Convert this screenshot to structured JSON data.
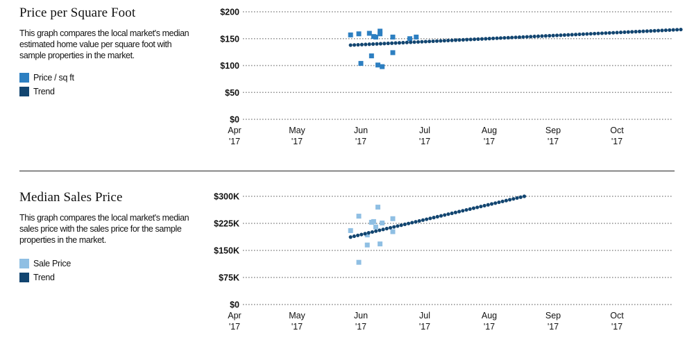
{
  "colors": {
    "price_sqft": "#2d7fc1",
    "sale_price": "#8fbfe3",
    "trend": "#124570",
    "grid": "#888888"
  },
  "panels": [
    {
      "title": "Price per Square Foot",
      "description": "This graph compares the local market's median estimated home value per square foot with sample properties in the market.",
      "legend": [
        {
          "label": "Price / sq ft",
          "color": "#2d7fc1"
        },
        {
          "label": "Trend",
          "color": "#124570"
        }
      ]
    },
    {
      "title": "Median Sales Price",
      "description": "This graph compares the local market's median sales price with the sales price for the sample properties in the market.",
      "legend": [
        {
          "label": "Sale Price",
          "color": "#8fbfe3"
        },
        {
          "label": "Trend",
          "color": "#124570"
        }
      ]
    }
  ],
  "chart_data": [
    {
      "type": "scatter",
      "title": "Price per Square Foot",
      "x_axis": {
        "type": "date",
        "range": [
          "2017-04-01",
          "2017-10-31"
        ],
        "ticks": [
          [
            "Apr",
            "'17"
          ],
          [
            "May",
            "'17"
          ],
          [
            "Jun",
            "'17"
          ],
          [
            "Jul",
            "'17"
          ],
          [
            "Aug",
            "'17"
          ],
          [
            "Sep",
            "'17"
          ],
          [
            "Oct",
            "'17"
          ]
        ]
      },
      "y_axis": {
        "range": [
          0,
          200
        ],
        "ticks": [
          "$0",
          "$50",
          "$100",
          "$150",
          "$200"
        ],
        "tick_values": [
          0,
          50,
          100,
          150,
          200
        ]
      },
      "grid": true,
      "series": [
        {
          "name": "Price / sq ft",
          "kind": "points",
          "color": "#2d7fc1",
          "points": [
            [
              "2017-05-27",
              157
            ],
            [
              "2017-05-31",
              159
            ],
            [
              "2017-06-01",
              104
            ],
            [
              "2017-06-05",
              160
            ],
            [
              "2017-06-06",
              118
            ],
            [
              "2017-06-07",
              154
            ],
            [
              "2017-06-08",
              153
            ],
            [
              "2017-06-09",
              101
            ],
            [
              "2017-06-10",
              159
            ],
            [
              "2017-06-10",
              164
            ],
            [
              "2017-06-11",
              98
            ],
            [
              "2017-06-16",
              153
            ],
            [
              "2017-06-16",
              124
            ],
            [
              "2017-06-24",
              150
            ],
            [
              "2017-06-27",
              153
            ]
          ]
        },
        {
          "name": "Trend",
          "kind": "dotted-line",
          "color": "#124570",
          "start": [
            "2017-05-27",
            138
          ],
          "end": [
            "2017-10-31",
            167
          ]
        }
      ]
    },
    {
      "type": "scatter",
      "title": "Median Sales Price",
      "x_axis": {
        "type": "date",
        "range": [
          "2017-04-01",
          "2017-10-31"
        ],
        "ticks": [
          [
            "Apr",
            "'17"
          ],
          [
            "May",
            "'17"
          ],
          [
            "Jun",
            "'17"
          ],
          [
            "Jul",
            "'17"
          ],
          [
            "Aug",
            "'17"
          ],
          [
            "Sep",
            "'17"
          ],
          [
            "Oct",
            "'17"
          ]
        ]
      },
      "y_axis": {
        "range": [
          0,
          300000
        ],
        "ticks": [
          "$0",
          "$75K",
          "$150K",
          "$225K",
          "$300K"
        ],
        "tick_values": [
          0,
          75000,
          150000,
          225000,
          300000
        ]
      },
      "grid": true,
      "series": [
        {
          "name": "Sale Price",
          "kind": "points",
          "color": "#8fbfe3",
          "points": [
            [
              "2017-05-27",
              205000
            ],
            [
              "2017-05-31",
              245000
            ],
            [
              "2017-05-31",
              117000
            ],
            [
              "2017-06-04",
              193000
            ],
            [
              "2017-06-04",
              165000
            ],
            [
              "2017-06-06",
              228000
            ],
            [
              "2017-06-07",
              230000
            ],
            [
              "2017-06-08",
              215000
            ],
            [
              "2017-06-09",
              270000
            ],
            [
              "2017-06-10",
              168000
            ],
            [
              "2017-06-11",
              226000
            ],
            [
              "2017-06-16",
              238000
            ],
            [
              "2017-06-16",
              202000
            ]
          ]
        },
        {
          "name": "Trend",
          "kind": "dotted-line",
          "color": "#124570",
          "start": [
            "2017-05-27",
            187000
          ],
          "end": [
            "2017-08-18",
            300000
          ]
        }
      ]
    }
  ]
}
